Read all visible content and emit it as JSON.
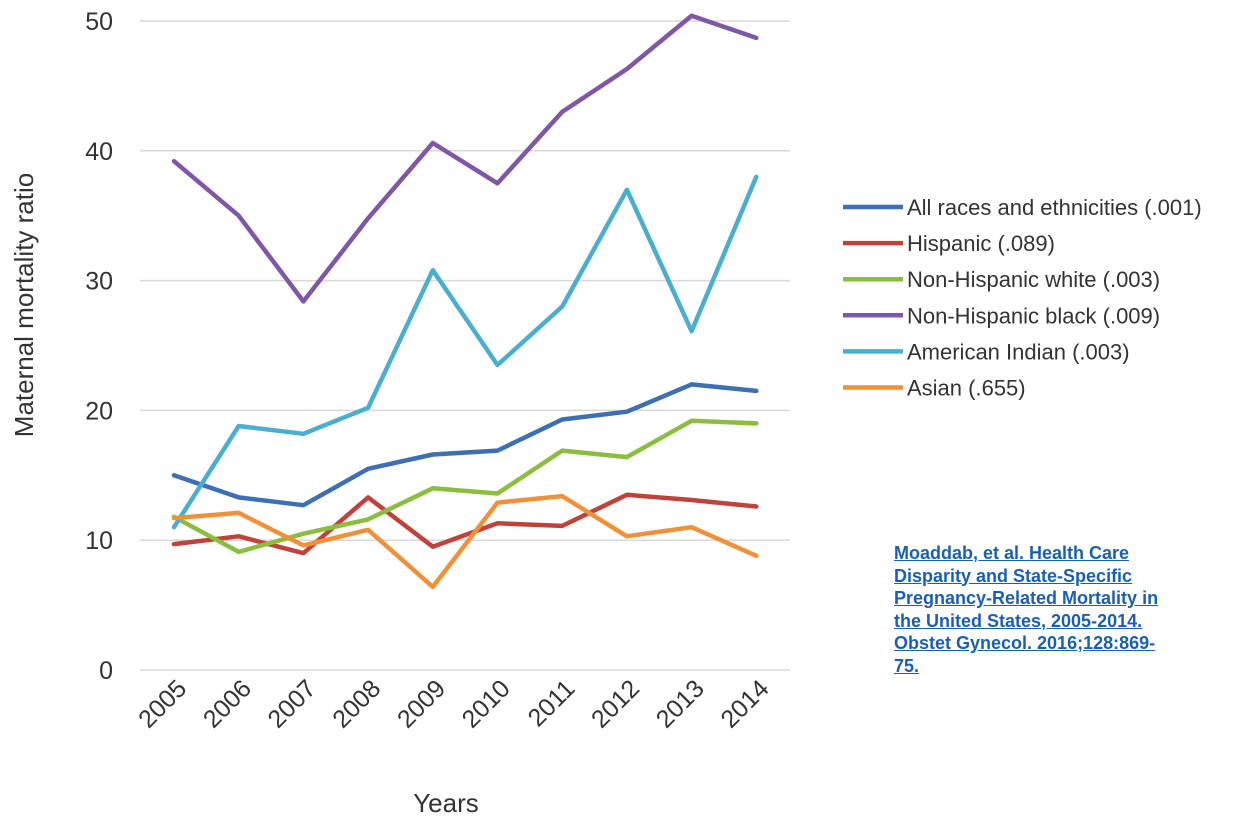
{
  "chart_data": {
    "type": "line",
    "xlabel": "Years",
    "ylabel": "Maternal mortality ratio",
    "ylim": [
      0,
      50
    ],
    "yticks": [
      0,
      10,
      20,
      30,
      40,
      50
    ],
    "categories": [
      "2005",
      "2006",
      "2007",
      "2008",
      "2009",
      "2010",
      "2011",
      "2012",
      "2013",
      "2014"
    ],
    "grid": true,
    "legend_position": "right",
    "series": [
      {
        "name": "All races and ethnicities (.001)",
        "color": "#3d6fb5",
        "values": [
          15.0,
          13.3,
          12.7,
          15.5,
          16.6,
          16.9,
          19.3,
          19.9,
          22.0,
          21.5
        ]
      },
      {
        "name": "Hispanic (.089)",
        "color": "#c0433b",
        "values": [
          9.7,
          10.3,
          9.0,
          13.3,
          9.5,
          11.3,
          11.1,
          13.5,
          13.1,
          12.6
        ]
      },
      {
        "name": "Non-Hispanic white (.003)",
        "color": "#8bbd3f",
        "values": [
          11.8,
          9.1,
          10.5,
          11.6,
          14.0,
          13.6,
          16.9,
          16.4,
          19.2,
          19.0
        ]
      },
      {
        "name": "Non-Hispanic black (.009)",
        "color": "#7e57a8",
        "values": [
          39.2,
          35.0,
          28.4,
          34.8,
          40.6,
          37.5,
          43.0,
          46.3,
          50.4,
          48.7
        ]
      },
      {
        "name": "American Indian (.003)",
        "color": "#4aaecf",
        "values": [
          11.0,
          18.8,
          18.2,
          20.2,
          30.8,
          23.5,
          28.0,
          37.0,
          26.1,
          38.0
        ]
      },
      {
        "name": "Asian (.655)",
        "color": "#f0913a",
        "values": [
          11.7,
          12.1,
          9.6,
          10.8,
          6.4,
          12.9,
          13.4,
          10.3,
          11.0,
          8.8
        ]
      }
    ]
  },
  "citation": {
    "lines": [
      "Moaddab, et al. Health Care",
      "Disparity and State-Specific",
      "Pregnancy-Related Mortality in",
      "the United States, 2005-2014.",
      "Obstet Gynecol. 2016;128:869-",
      "75."
    ]
  }
}
